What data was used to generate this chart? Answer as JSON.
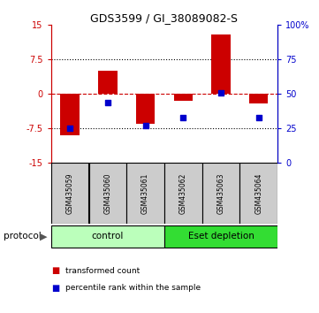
{
  "title": "GDS3599 / GI_38089082-S",
  "samples": [
    "GSM435059",
    "GSM435060",
    "GSM435061",
    "GSM435062",
    "GSM435063",
    "GSM435064"
  ],
  "red_bars": [
    -9.0,
    5.0,
    -6.5,
    -1.5,
    13.0,
    -2.0
  ],
  "blue_percentiles": [
    25,
    44,
    27,
    33,
    51,
    33
  ],
  "ylim_left": [
    -15,
    15
  ],
  "ylim_right": [
    0,
    100
  ],
  "yticks_left": [
    -15,
    -7.5,
    0,
    7.5,
    15
  ],
  "yticks_right": [
    0,
    25,
    50,
    75,
    100
  ],
  "red_color": "#cc0000",
  "blue_color": "#0000cc",
  "hline_color": "#cc0000",
  "dotted_color": "#000000",
  "groups": [
    {
      "label": "control",
      "samples": [
        0,
        1,
        2
      ],
      "color": "#bbffbb"
    },
    {
      "label": "Eset depletion",
      "samples": [
        3,
        4,
        5
      ],
      "color": "#33dd33"
    }
  ],
  "protocol_label": "protocol",
  "legend_red": "transformed count",
  "legend_blue": "percentile rank within the sample",
  "bar_width": 0.5,
  "background_labels": "#cccccc"
}
